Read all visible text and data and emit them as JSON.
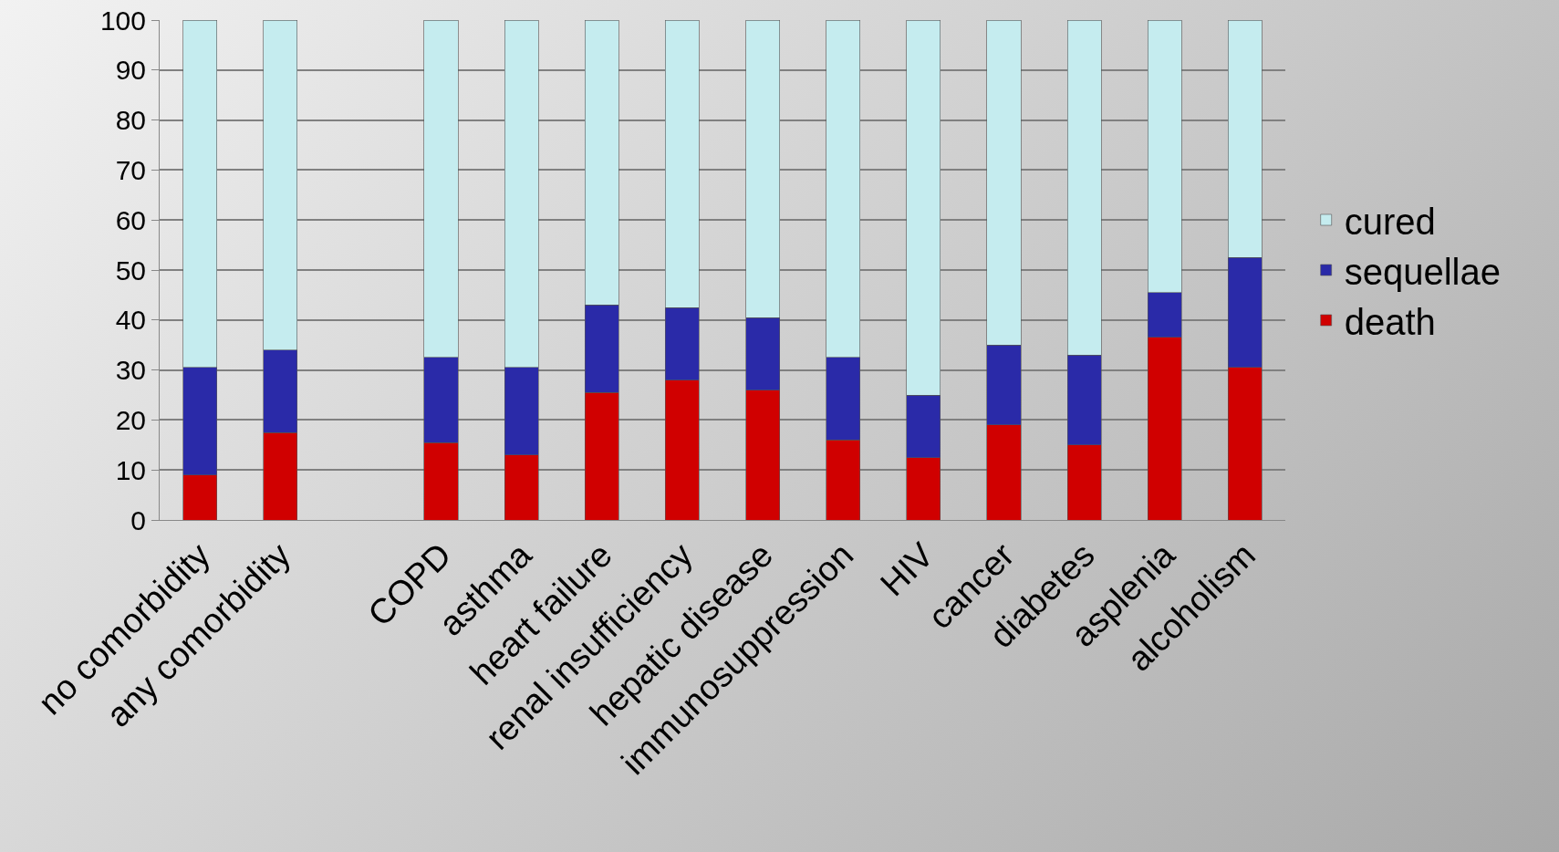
{
  "chart_data": {
    "type": "bar",
    "stacked": true,
    "categories": [
      "no comorbidity",
      "any comorbidity",
      null,
      "COPD",
      "asthma",
      "heart failure",
      "renal insufficiency",
      "hepatic disease",
      "immunosuppression",
      "HIV",
      "cancer",
      "diabetes",
      "asplenia",
      "alcoholism"
    ],
    "series": [
      {
        "name": "death",
        "color": "#d00000",
        "values": [
          9,
          17.5,
          null,
          15.5,
          13,
          25.5,
          28,
          26,
          16,
          12.5,
          19,
          15,
          36.5,
          30.5
        ]
      },
      {
        "name": "sequellae",
        "color": "#2a2aa8",
        "values": [
          21.5,
          16.5,
          null,
          17,
          17.5,
          17.5,
          14.5,
          14.5,
          16.5,
          12.5,
          16,
          18,
          9,
          22
        ]
      },
      {
        "name": "cured",
        "color": "#c5ecef",
        "values": [
          69.5,
          66,
          null,
          67.5,
          69.5,
          57,
          57.5,
          59.5,
          67.5,
          75,
          65,
          67,
          54.5,
          47.5
        ]
      }
    ],
    "ylim": [
      0,
      100
    ],
    "yticks": [
      0,
      10,
      20,
      30,
      40,
      50,
      60,
      70,
      80,
      90,
      100
    ],
    "grid": "y",
    "legend": "right"
  }
}
